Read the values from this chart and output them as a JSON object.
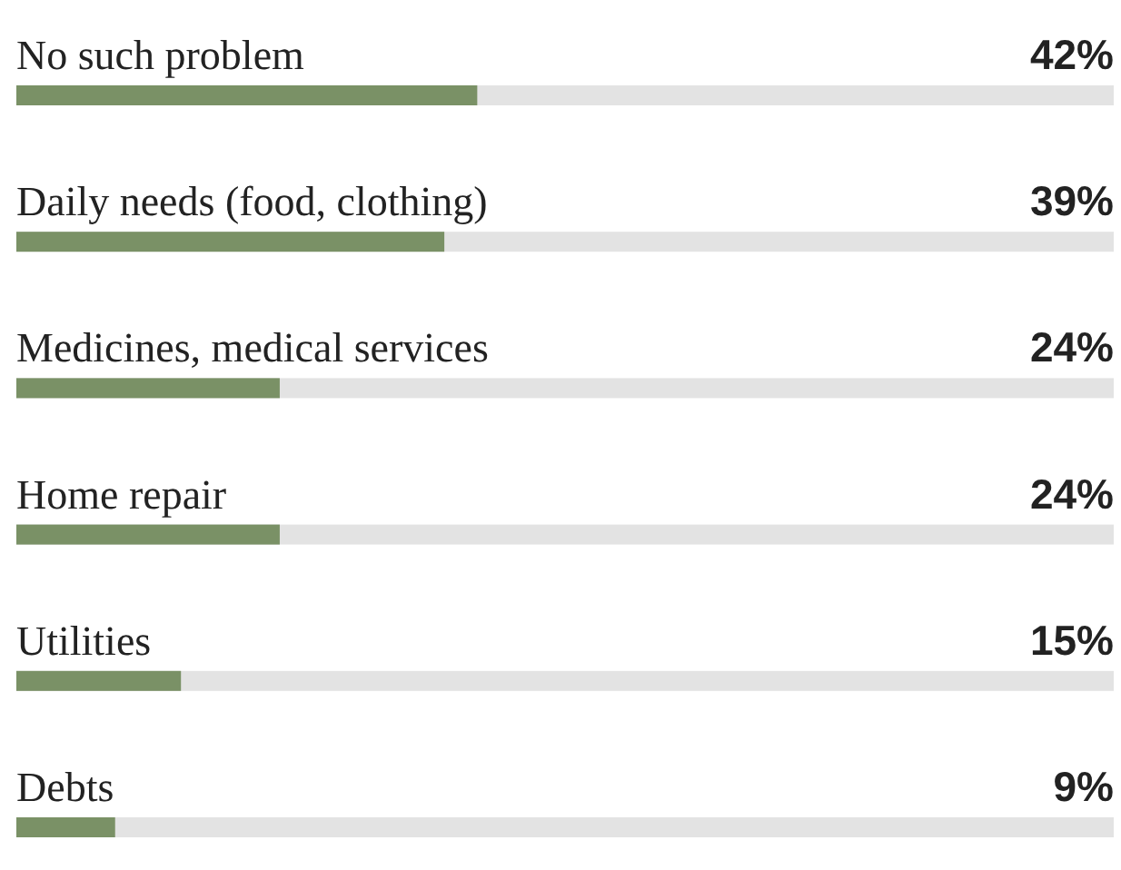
{
  "chart_data": {
    "type": "bar",
    "orientation": "horizontal",
    "categories": [
      "No such problem",
      "Daily needs (food, clothing)",
      "Medicines, medical services",
      "Home repair",
      "Utilities",
      "Debts"
    ],
    "values": [
      42,
      39,
      24,
      24,
      15,
      9
    ],
    "value_labels": [
      "42%",
      "39%",
      "24%",
      "24%",
      "15%",
      "9%"
    ],
    "color": "#7a9166",
    "xlim": [
      0,
      100
    ]
  }
}
